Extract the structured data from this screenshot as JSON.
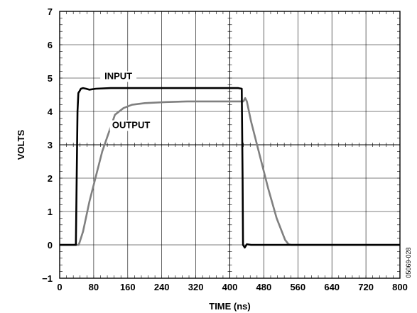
{
  "chart_data": {
    "type": "line",
    "title": "",
    "xlabel": "TIME (ns)",
    "ylabel": "VOLTS",
    "xlim": [
      0,
      800
    ],
    "ylim": [
      -1,
      7
    ],
    "x_ticks": [
      0,
      80,
      160,
      240,
      320,
      400,
      480,
      560,
      640,
      720,
      800
    ],
    "y_ticks": [
      -1,
      0,
      1,
      2,
      3,
      4,
      5,
      6,
      7
    ],
    "x_tick_labels": [
      "0",
      "80",
      "160",
      "240",
      "320",
      "400",
      "480",
      "560",
      "640",
      "720",
      "800"
    ],
    "y_tick_labels": [
      "−1",
      "0",
      "1",
      "2",
      "3",
      "4",
      "5",
      "6",
      "7"
    ],
    "grid": true,
    "figure_id": "05069-028",
    "series": [
      {
        "name": "INPUT",
        "color": "#000000",
        "x": [
          0,
          38,
          42,
          44,
          50,
          55,
          62,
          70,
          85,
          120,
          200,
          300,
          420,
          428,
          430,
          431,
          435,
          440,
          450,
          800
        ],
        "y": [
          0,
          0,
          4.0,
          4.55,
          4.68,
          4.7,
          4.68,
          4.65,
          4.68,
          4.7,
          4.7,
          4.7,
          4.7,
          4.68,
          2.0,
          0.0,
          -0.08,
          0.02,
          0,
          0
        ]
      },
      {
        "name": "OUTPUT",
        "color": "#808080",
        "x": [
          0,
          45,
          55,
          70,
          100,
          130,
          150,
          170,
          200,
          250,
          300,
          350,
          420,
          432,
          436,
          440,
          450,
          470,
          490,
          510,
          530,
          538,
          545,
          560,
          800
        ],
        "y": [
          0,
          0,
          0.4,
          1.3,
          2.8,
          3.9,
          4.1,
          4.2,
          4.25,
          4.28,
          4.3,
          4.3,
          4.3,
          4.3,
          4.4,
          4.3,
          3.7,
          2.7,
          1.7,
          0.8,
          0.15,
          0.02,
          0,
          0,
          0
        ]
      }
    ],
    "annotations": [
      {
        "text": "INPUT",
        "x": 138,
        "y": 4.97
      },
      {
        "text": "OUTPUT",
        "x": 168,
        "y": 3.5
      }
    ]
  }
}
